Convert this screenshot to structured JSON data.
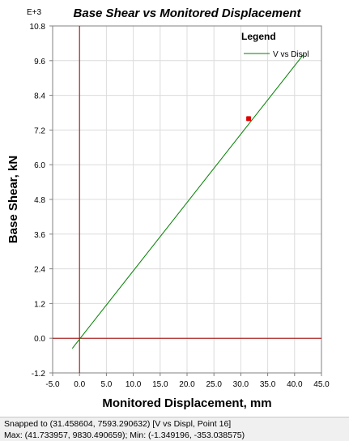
{
  "chart_data": {
    "type": "line",
    "title": "Base Shear vs Monitored Displacement",
    "xlabel": "Monitored Displacement, mm",
    "ylabel": "Base Shear, kN",
    "y_multiplier_label": "E+3",
    "xlim": [
      -5.0,
      45.0
    ],
    "ylim": [
      -1.2,
      10.8
    ],
    "x_ticks": [
      "-5.0",
      "0.0",
      "5.0",
      "10.0",
      "15.0",
      "20.0",
      "25.0",
      "30.0",
      "35.0",
      "40.0",
      "45.0"
    ],
    "y_ticks": [
      "-1.2",
      "0.0",
      "1.2",
      "2.4",
      "3.6",
      "4.8",
      "6.0",
      "7.2",
      "8.4",
      "9.6",
      "10.8"
    ],
    "grid": true,
    "legend_title": "Legend",
    "legend_position": "top-right",
    "series": [
      {
        "name": "V vs Displ",
        "color": "#008000",
        "x": [
          -1.349196,
          41.733957
        ],
        "y": [
          -0.353038575,
          9.830490659
        ]
      }
    ],
    "highlight_point": {
      "x": 31.458604,
      "y": 7.593290632,
      "color": "#e00000"
    },
    "axis_line_color": "#a00000"
  },
  "status": {
    "line1": "Snapped to (31.458604, 7593.290632)   [V vs Displ, Point 16]",
    "line2": "Max: (41.733957, 9830.490659);   Min: (-1.349196, -353.038575)"
  }
}
